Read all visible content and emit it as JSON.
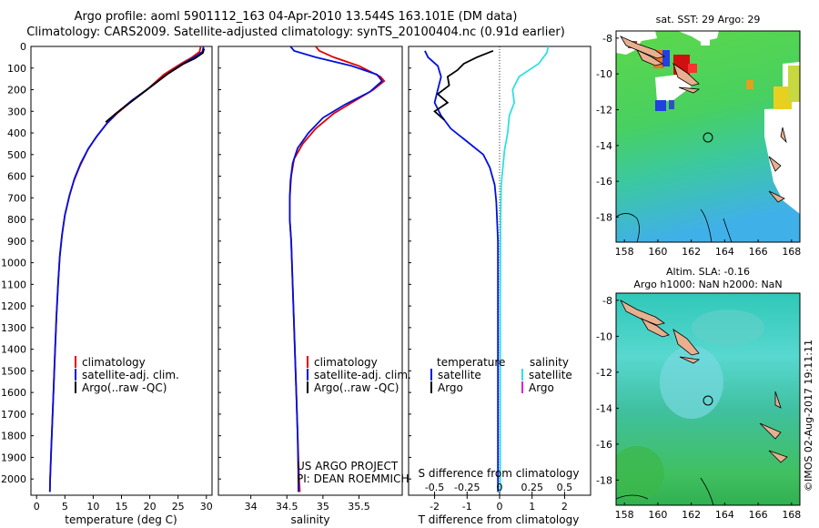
{
  "title_line1": "Argo profile: aoml 5901112_163 04-Apr-2010 13.544S 163.101E (DM data)",
  "title_line2": "Climatology: CARS2009. Satellite-adjusted climatology: synTS_20100404.nc (0.91d earlier)",
  "stamp": "©IMOS 02-Aug-2017 19:11:11",
  "credit_line1": "US ARGO PROJECT",
  "credit_line2": "PI: DEAN ROEMMICH",
  "colors": {
    "climatology": "#e00000",
    "satellite": "#0010e0",
    "argo": "#000000",
    "sal_satellite": "#30e0e0",
    "sal_argo": "#e020e0"
  },
  "chart_data": [
    {
      "type": "line",
      "panel": "temperature",
      "xlabel": "temperature (deg C)",
      "ylabel": "",
      "xlim": [
        -1,
        31
      ],
      "ylim": [
        2075,
        0
      ],
      "y_reversed": true,
      "xticks": [
        0,
        5,
        10,
        15,
        20,
        25,
        30
      ],
      "yticks": [
        0,
        100,
        200,
        300,
        400,
        500,
        600,
        700,
        800,
        900,
        1000,
        1100,
        1200,
        1300,
        1400,
        1500,
        1600,
        1700,
        1800,
        1900,
        2000
      ],
      "legend": [
        "climatology",
        "satellite-adj. clim.",
        "Argo(..raw -QC)"
      ],
      "series": [
        {
          "name": "climatology",
          "color_key": "climatology",
          "points": [
            [
              29.0,
              0
            ],
            [
              28.8,
              25
            ],
            [
              27.5,
              50
            ],
            [
              25.5,
              80
            ],
            [
              22.5,
              130
            ],
            [
              19.5,
              200
            ],
            [
              16.5,
              260
            ],
            [
              14.2,
              310
            ],
            [
              12.3,
              360
            ],
            [
              10.5,
              420
            ],
            [
              9.0,
              480
            ],
            [
              7.7,
              550
            ],
            [
              6.6,
              620
            ],
            [
              5.8,
              690
            ],
            [
              5.0,
              780
            ],
            [
              4.5,
              870
            ],
            [
              4.1,
              970
            ],
            [
              3.8,
              1100
            ],
            [
              3.5,
              1250
            ],
            [
              3.2,
              1450
            ],
            [
              2.9,
              1650
            ],
            [
              2.6,
              1850
            ],
            [
              2.4,
              2000
            ],
            [
              2.35,
              2060
            ]
          ]
        },
        {
          "name": "satellite-adj. clim.",
          "color_key": "satellite",
          "points": [
            [
              29.5,
              0
            ],
            [
              29.3,
              25
            ],
            [
              28.2,
              45
            ],
            [
              26.5,
              70
            ],
            [
              23.5,
              120
            ],
            [
              20.0,
              190
            ],
            [
              16.8,
              250
            ],
            [
              14.5,
              300
            ],
            [
              12.6,
              350
            ],
            [
              10.8,
              410
            ],
            [
              9.2,
              470
            ],
            [
              7.8,
              540
            ],
            [
              6.7,
              610
            ],
            [
              5.8,
              690
            ],
            [
              5.0,
              780
            ],
            [
              4.5,
              870
            ],
            [
              4.1,
              970
            ],
            [
              3.8,
              1100
            ],
            [
              3.5,
              1250
            ],
            [
              3.2,
              1450
            ],
            [
              2.9,
              1650
            ],
            [
              2.6,
              1850
            ],
            [
              2.4,
              2000
            ],
            [
              2.35,
              2060
            ]
          ]
        },
        {
          "name": "Argo(..raw -QC)",
          "color_key": "argo",
          "points": [
            [
              29.6,
              10
            ],
            [
              29.4,
              30
            ],
            [
              28.0,
              55
            ],
            [
              26.0,
              80
            ],
            [
              23.0,
              130
            ],
            [
              19.5,
              200
            ],
            [
              16.5,
              260
            ],
            [
              14.0,
              310
            ],
            [
              12.2,
              350
            ]
          ]
        }
      ]
    },
    {
      "type": "line",
      "panel": "salinity",
      "xlabel": "salinity",
      "ylabel": "",
      "xlim": [
        33.55,
        36.1
      ],
      "ylim": [
        2075,
        0
      ],
      "y_reversed": true,
      "xticks": [
        34,
        34.5,
        35,
        35.5
      ],
      "xticklabels": [
        "34",
        "34.5",
        "35",
        "35.5"
      ],
      "legend": [
        "climatology",
        "satellite-adj. clim.",
        "Argo(..raw -QC)"
      ],
      "series": [
        {
          "name": "climatology",
          "color_key": "climatology",
          "points": [
            [
              34.9,
              0
            ],
            [
              34.95,
              20
            ],
            [
              35.15,
              50
            ],
            [
              35.5,
              90
            ],
            [
              35.8,
              140
            ],
            [
              35.85,
              160
            ],
            [
              35.7,
              200
            ],
            [
              35.45,
              250
            ],
            [
              35.15,
              310
            ],
            [
              34.9,
              380
            ],
            [
              34.72,
              450
            ],
            [
              34.6,
              520
            ],
            [
              34.56,
              600
            ],
            [
              34.54,
              700
            ],
            [
              34.54,
              800
            ],
            [
              34.56,
              900
            ],
            [
              34.57,
              1000
            ],
            [
              34.59,
              1200
            ],
            [
              34.61,
              1400
            ],
            [
              34.63,
              1600
            ],
            [
              34.65,
              1800
            ],
            [
              34.67,
              2000
            ],
            [
              34.68,
              2060
            ]
          ]
        },
        {
          "name": "satellite-adj. clim.",
          "color_key": "satellite",
          "points": [
            [
              34.55,
              0
            ],
            [
              34.6,
              20
            ],
            [
              34.9,
              50
            ],
            [
              35.4,
              90
            ],
            [
              35.75,
              130
            ],
            [
              35.82,
              160
            ],
            [
              35.65,
              210
            ],
            [
              35.3,
              270
            ],
            [
              35.0,
              330
            ],
            [
              34.8,
              400
            ],
            [
              34.65,
              470
            ],
            [
              34.58,
              540
            ],
            [
              34.55,
              620
            ],
            [
              34.54,
              700
            ],
            [
              34.54,
              800
            ],
            [
              34.56,
              900
            ],
            [
              34.57,
              1000
            ],
            [
              34.59,
              1200
            ],
            [
              34.61,
              1400
            ],
            [
              34.63,
              1600
            ],
            [
              34.65,
              1800
            ],
            [
              34.66,
              2000
            ],
            [
              34.66,
              2060
            ]
          ]
        }
      ]
    },
    {
      "type": "line",
      "panel": "difference",
      "xlabel": "T difference from climatology",
      "xlabel_top": "S difference from climatology",
      "xlim": [
        -2.8,
        2.8
      ],
      "ylim": [
        2075,
        0
      ],
      "y_reversed": true,
      "xticks": [
        -2,
        -1,
        0,
        1,
        2
      ],
      "top_ticks": [
        -0.5,
        -0.25,
        0,
        0.25,
        0.5
      ],
      "top_ticklabels": [
        "-0.5",
        "-0.25",
        "0",
        "0.25",
        "0.5"
      ],
      "legend_left_title": "temperature",
      "legend_right_title": "salinity",
      "legend_left": [
        "satellite",
        "Argo"
      ],
      "legend_right": [
        "satellite",
        "Argo"
      ],
      "series": [
        {
          "name": "satellite",
          "var": "temperature",
          "color_key": "satellite",
          "points": [
            [
              -2.3,
              20
            ],
            [
              -2.2,
              50
            ],
            [
              -1.9,
              90
            ],
            [
              -1.8,
              140
            ],
            [
              -1.9,
              200
            ],
            [
              -2.0,
              260
            ],
            [
              -1.8,
              320
            ],
            [
              -1.5,
              380
            ],
            [
              -1.0,
              440
            ],
            [
              -0.5,
              500
            ],
            [
              -0.3,
              560
            ],
            [
              -0.15,
              640
            ],
            [
              -0.1,
              720
            ],
            [
              -0.05,
              900
            ],
            [
              -0.05,
              1200
            ],
            [
              -0.05,
              1600
            ],
            [
              -0.05,
              2060
            ]
          ]
        },
        {
          "name": "satellite",
          "var": "salinity",
          "color_key": "sal_satellite",
          "points": [
            [
              1.5,
              0
            ],
            [
              1.45,
              30
            ],
            [
              1.2,
              80
            ],
            [
              0.6,
              140
            ],
            [
              0.4,
              200
            ],
            [
              0.45,
              260
            ],
            [
              0.3,
              320
            ],
            [
              0.25,
              400
            ],
            [
              0.15,
              480
            ],
            [
              0.1,
              560
            ],
            [
              0.05,
              640
            ],
            [
              0.03,
              800
            ],
            [
              0.02,
              1200
            ],
            [
              0.02,
              1600
            ],
            [
              0.02,
              2060
            ]
          ]
        },
        {
          "name": "Argo",
          "var": "temperature",
          "color_key": "argo",
          "points": [
            [
              -0.2,
              20
            ],
            [
              -0.7,
              50
            ],
            [
              -1.1,
              80
            ],
            [
              -1.3,
              110
            ],
            [
              -1.6,
              140
            ],
            [
              -1.55,
              180
            ],
            [
              -1.9,
              220
            ],
            [
              -1.6,
              260
            ],
            [
              -2.0,
              300
            ],
            [
              -1.7,
              340
            ]
          ]
        }
      ]
    }
  ],
  "maps": [
    {
      "title": "sat. SST: 29 Argo: 29",
      "title2": "",
      "lon_ticks": [
        "158",
        "160",
        "162",
        "164",
        "166",
        "168"
      ],
      "lat_ticks": [
        "-8",
        "-10",
        "-12",
        "-14",
        "-16",
        "-18"
      ]
    },
    {
      "title": "Altim. SLA: -0.16",
      "title2": "Argo h1000: NaN h2000: NaN",
      "lon_ticks": [
        "158",
        "160",
        "162",
        "164",
        "166",
        "168"
      ],
      "lat_ticks": [
        "-8",
        "-10",
        "-12",
        "-14",
        "-16",
        "-18"
      ]
    }
  ]
}
